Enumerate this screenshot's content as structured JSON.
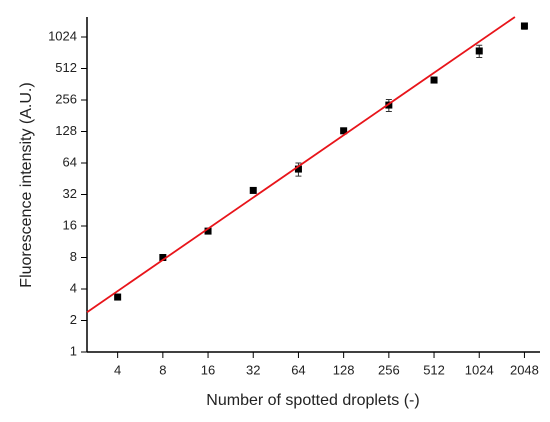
{
  "chart_data": {
    "type": "scatter",
    "xlabel": "Number of spotted droplets (-)",
    "ylabel": "Fluorescence intensity (A.U.)",
    "xscale": "log",
    "yscale": "log",
    "xlim": [
      2.5,
      2600
    ],
    "ylim": [
      1,
      1590
    ],
    "xticks": [
      4,
      8,
      16,
      32,
      64,
      128,
      256,
      512,
      1024,
      2048
    ],
    "yticks": [
      1,
      2,
      4,
      8,
      16,
      32,
      64,
      128,
      256,
      512,
      1024
    ],
    "series": [
      {
        "type": "scatter",
        "color": "#000000",
        "x": [
          4,
          8,
          16,
          32,
          64,
          128,
          256,
          512,
          1024,
          2048
        ],
        "values": [
          3.35,
          8,
          14.3,
          35,
          56,
          130,
          229,
          397,
          753,
          1305
        ],
        "errors": [
          0.2,
          0.4,
          0.8,
          1.5,
          8,
          6,
          30,
          25,
          100,
          90
        ]
      },
      {
        "type": "line",
        "color": "#e8141a",
        "x": [
          2.5,
          1770
        ],
        "values": [
          2.4,
          1590
        ]
      }
    ]
  }
}
